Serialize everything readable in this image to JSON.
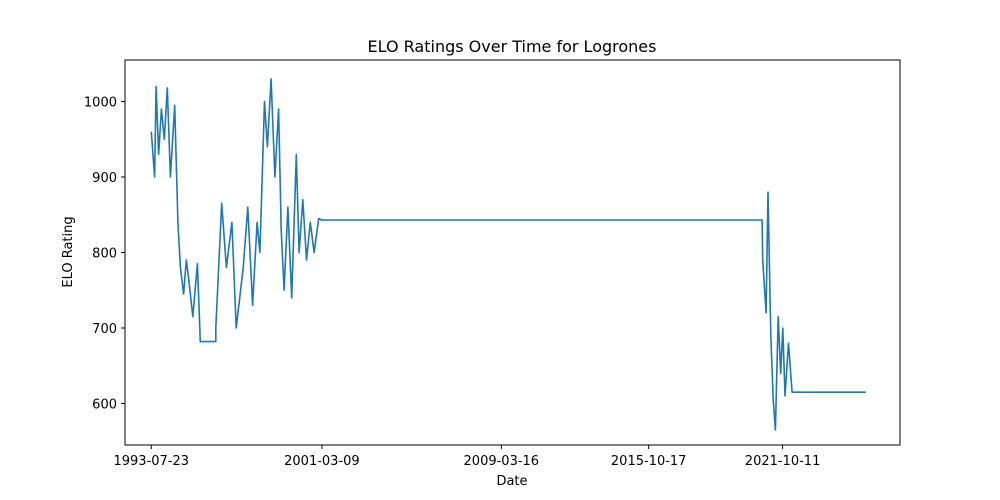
{
  "chart_data": {
    "type": "line",
    "title": "ELO Ratings Over Time for Logrones",
    "xlabel": "Date",
    "ylabel": "ELO Rating",
    "x_ticks": [
      "1993-07-23",
      "2001-03-09",
      "2009-03-16",
      "2015-10-17",
      "2021-10-11"
    ],
    "y_ticks": [
      600,
      700,
      800,
      900,
      1000
    ],
    "xlim": [
      "1992-05-20",
      "2027-01-10"
    ],
    "ylim": [
      545,
      1055
    ],
    "grid": false,
    "legend": "none",
    "line_color": "#1f77b4",
    "series": [
      {
        "x": [
          "1993-07-23",
          "1993-09-15",
          "1993-10-10",
          "1993-11-20",
          "1994-01-05",
          "1994-02-20",
          "1994-04-10",
          "1994-06-01",
          "1994-08-10",
          "1994-10-01",
          "1994-11-10",
          "1995-01-01",
          "1995-02-15",
          "1995-04-01",
          "1995-06-01",
          "1995-08-15",
          "1995-10-01",
          "1995-12-01",
          "1996-02-01",
          "1996-04-01",
          "1996-06-10",
          "1996-06-11",
          "1996-09-15",
          "1996-12-01",
          "1997-03-01",
          "1997-05-10",
          "1997-09-01",
          "1997-11-15",
          "1998-02-01",
          "1998-04-15",
          "1998-06-01",
          "1998-08-15",
          "1998-10-01",
          "1998-12-01",
          "1999-02-01",
          "1999-04-01",
          "1999-05-15",
          "1999-07-01",
          "1999-09-01",
          "1999-11-01",
          "2000-01-15",
          "2000-03-01",
          "2000-05-01",
          "2000-07-01",
          "2000-09-01",
          "2000-11-01",
          "2001-01-15",
          "2001-03-01",
          "2001-04-15",
          "2001-06-01",
          "2001-06-02",
          "2020-11-10",
          "2020-11-20",
          "2021-01-15",
          "2021-02-15",
          "2021-04-01",
          "2021-05-10",
          "2021-06-15",
          "2021-08-01",
          "2021-09-10",
          "2021-10-15",
          "2021-11-20",
          "2022-01-15",
          "2022-03-15",
          "2022-05-01",
          "2022-06-15",
          "2022-06-16",
          "2025-07-01"
        ],
        "y": [
          960,
          900,
          1020,
          930,
          990,
          950,
          1018,
          900,
          995,
          840,
          780,
          745,
          790,
          760,
          715,
          785,
          682,
          682,
          682,
          682,
          682,
          700,
          865,
          780,
          840,
          700,
          780,
          860,
          730,
          840,
          800,
          1000,
          940,
          1030,
          900,
          990,
          830,
          750,
          860,
          740,
          930,
          800,
          870,
          790,
          840,
          800,
          845,
          843,
          843,
          843,
          843,
          843,
          790,
          720,
          880,
          690,
          605,
          565,
          715,
          640,
          700,
          610,
          680,
          615,
          615,
          615,
          615,
          615
        ]
      }
    ]
  }
}
